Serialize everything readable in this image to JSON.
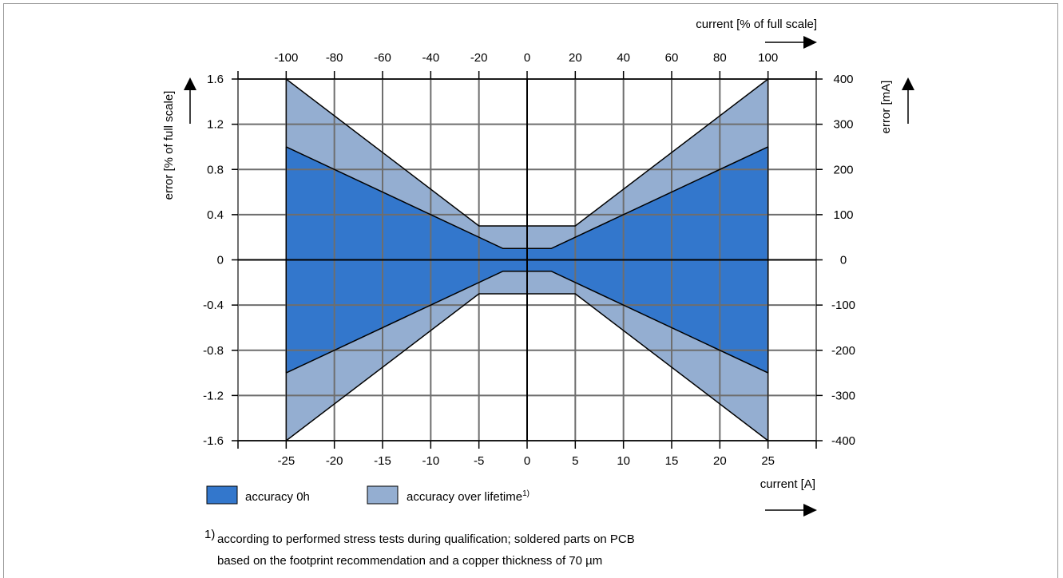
{
  "chart_data": {
    "type": "area",
    "x_bottom": {
      "label": "current [A]",
      "ticks": [
        -25,
        -20,
        -15,
        -10,
        -5,
        0,
        5,
        10,
        15,
        20,
        25
      ],
      "range": [
        -30,
        30
      ]
    },
    "x_top": {
      "label": "current [% of full scale]",
      "ticks": [
        -100,
        -80,
        -60,
        -40,
        -20,
        0,
        20,
        40,
        60,
        80,
        100
      ]
    },
    "y_left": {
      "label": "error [% of full scale]",
      "ticks": [
        "1.6",
        "1.2",
        "0.8",
        "0.4",
        "0",
        "-0.4",
        "-0.8",
        "-1.2",
        "-1.6"
      ],
      "range": [
        -1.6,
        1.6
      ]
    },
    "y_right": {
      "label": "error [mA]",
      "ticks": [
        "400",
        "300",
        "200",
        "100",
        "0",
        "-100",
        "-200",
        "-300",
        "-400"
      ]
    },
    "grid": true,
    "series": [
      {
        "name": "accuracy over lifetime",
        "name_sup": "1)",
        "color": "#94aed1",
        "upper": [
          [
            -25,
            1.6
          ],
          [
            -5,
            0.3
          ],
          [
            5,
            0.3
          ],
          [
            25,
            1.6
          ]
        ],
        "lower": [
          [
            -25,
            -1.6
          ],
          [
            -5,
            -0.3
          ],
          [
            5,
            -0.3
          ],
          [
            25,
            -1.6
          ]
        ]
      },
      {
        "name": "accuracy 0h",
        "color": "#3377cc",
        "upper": [
          [
            -25,
            1.0
          ],
          [
            -2.5,
            0.1
          ],
          [
            2.5,
            0.1
          ],
          [
            25,
            1.0
          ]
        ],
        "lower": [
          [
            -25,
            -1.0
          ],
          [
            -2.5,
            -0.1
          ],
          [
            2.5,
            -0.1
          ],
          [
            25,
            -1.0
          ]
        ]
      }
    ],
    "legend": [
      {
        "label": "accuracy 0h",
        "sup": "",
        "color": "#3377cc"
      },
      {
        "label": "accuracy over lifetime",
        "sup": "1)",
        "color": "#94aed1"
      }
    ],
    "footnote": {
      "mark": "1)",
      "line1": "according to performed stress tests during qualification; soldered parts on PCB",
      "line2": "based on the footprint recommendation and a copper thickness of 70 µm"
    }
  }
}
